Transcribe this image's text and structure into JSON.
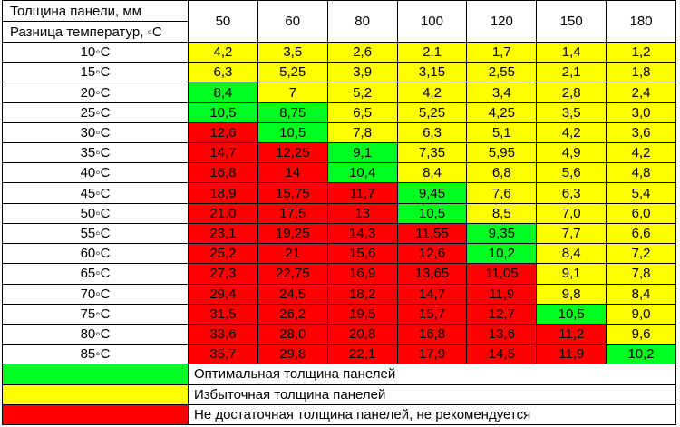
{
  "header": {
    "thickness_label": "Толщина панели, мм",
    "delta_label": "Разница температур, ◦С",
    "thicknesses": [
      "50",
      "60",
      "80",
      "100",
      "120",
      "150",
      "180"
    ]
  },
  "rows": [
    {
      "temp": "10◦С",
      "values": [
        "4,2",
        "3,5",
        "2,6",
        "2,1",
        "1,7",
        "1,4",
        "1,2"
      ],
      "status": [
        "y",
        "y",
        "y",
        "y",
        "y",
        "y",
        "y"
      ]
    },
    {
      "temp": "15◦С",
      "values": [
        "6,3",
        "5,25",
        "3,9",
        "3,15",
        "2,55",
        "2,1",
        "1,8"
      ],
      "status": [
        "y",
        "y",
        "y",
        "y",
        "y",
        "y",
        "y"
      ]
    },
    {
      "temp": "20◦С",
      "values": [
        "8,4",
        "7",
        "5,2",
        "4,2",
        "3,4",
        "2,8",
        "2,4"
      ],
      "status": [
        "g",
        "y",
        "y",
        "y",
        "y",
        "y",
        "y"
      ]
    },
    {
      "temp": "25◦С",
      "values": [
        "10,5",
        "8,75",
        "6,5",
        "5,25",
        "4,25",
        "3,5",
        "3,0"
      ],
      "status": [
        "g",
        "g",
        "y",
        "y",
        "y",
        "y",
        "y"
      ]
    },
    {
      "temp": "30◦С",
      "values": [
        "12,6",
        "10,5",
        "7,8",
        "6,3",
        "5,1",
        "4,2",
        "3,6"
      ],
      "status": [
        "r",
        "g",
        "y",
        "y",
        "y",
        "y",
        "y"
      ]
    },
    {
      "temp": "35◦С",
      "values": [
        "14,7",
        "12,25",
        "9,1",
        "7,35",
        "5,95",
        "4,9",
        "4,2"
      ],
      "status": [
        "r",
        "r",
        "g",
        "y",
        "y",
        "y",
        "y"
      ]
    },
    {
      "temp": "40◦С",
      "values": [
        "16,8",
        "14",
        "10,4",
        "8,4",
        "6,8",
        "5,6",
        "4,8"
      ],
      "status": [
        "r",
        "r",
        "g",
        "y",
        "y",
        "y",
        "y"
      ]
    },
    {
      "temp": "45◦С",
      "values": [
        "18,9",
        "15,75",
        "11,7",
        "9,45",
        "7,6",
        "6,3",
        "5,4"
      ],
      "status": [
        "r",
        "r",
        "r",
        "g",
        "y",
        "y",
        "y"
      ]
    },
    {
      "temp": "50◦С",
      "values": [
        "21,0",
        "17,5",
        "13",
        "10,5",
        "8,5",
        "7,0",
        "6,0"
      ],
      "status": [
        "r",
        "r",
        "r",
        "g",
        "y",
        "y",
        "y"
      ]
    },
    {
      "temp": "55◦С",
      "values": [
        "23,1",
        "19,25",
        "14,3",
        "11,55",
        "9,35",
        "7,7",
        "6,6"
      ],
      "status": [
        "r",
        "r",
        "r",
        "r",
        "g",
        "y",
        "y"
      ]
    },
    {
      "temp": "60◦С",
      "values": [
        "25,2",
        "21",
        "15,6",
        "12,6",
        "10,2",
        "8,4",
        "7,2"
      ],
      "status": [
        "r",
        "r",
        "r",
        "r",
        "g",
        "y",
        "y"
      ]
    },
    {
      "temp": "65◦С",
      "values": [
        "27,3",
        "22,75",
        "16,9",
        "13,65",
        "11,05",
        "9,1",
        "7,8"
      ],
      "status": [
        "r",
        "r",
        "r",
        "r",
        "r",
        "y",
        "y"
      ]
    },
    {
      "temp": "70◦С",
      "values": [
        "29,4",
        "24,5",
        "18,2",
        "14,7",
        "11,9",
        "9,8",
        "8,4"
      ],
      "status": [
        "r",
        "r",
        "r",
        "r",
        "r",
        "y",
        "y"
      ]
    },
    {
      "temp": "75◦С",
      "values": [
        "31,5",
        "26,2",
        "19,5",
        "15,7",
        "12,7",
        "10,5",
        "9,0"
      ],
      "status": [
        "r",
        "r",
        "r",
        "r",
        "r",
        "g",
        "y"
      ]
    },
    {
      "temp": "80◦С",
      "values": [
        "33,6",
        "28,0",
        "20,8",
        "16,8",
        "13,6",
        "11,2",
        "9,6"
      ],
      "status": [
        "r",
        "r",
        "r",
        "r",
        "r",
        "r",
        "y"
      ]
    },
    {
      "temp": "85◦С",
      "values": [
        "35,7",
        "29,8",
        "22,1",
        "17,9",
        "14,5",
        "11,9",
        "10,2"
      ],
      "status": [
        "r",
        "r",
        "r",
        "r",
        "r",
        "r",
        "g"
      ]
    }
  ],
  "legend": [
    {
      "color": "g",
      "text": "Оптимальная толщина панелей"
    },
    {
      "color": "y",
      "text": "Избыточная толщина панелей"
    },
    {
      "color": "r",
      "text": "Не достаточная толщина панелей, не рекомендуется"
    }
  ],
  "colors": {
    "g": "#00ff20",
    "y": "#ffff00",
    "r": "#ff0000"
  }
}
